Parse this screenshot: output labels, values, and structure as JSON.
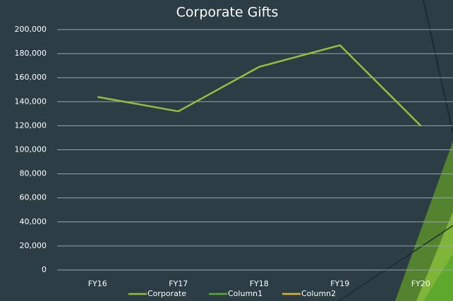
{
  "chart_data": {
    "type": "line",
    "title": "Corporate Gifts",
    "categories": [
      "FY16",
      "FY17",
      "FY18",
      "FY19",
      "FY20"
    ],
    "series": [
      {
        "name": "Corporate",
        "color": "#9bbb3c",
        "values": [
          144000,
          132000,
          169000,
          187000,
          120000
        ]
      },
      {
        "name": "Column1",
        "color": "#5fa82e",
        "values": [
          null,
          null,
          null,
          null,
          null
        ]
      },
      {
        "name": "Column2",
        "color": "#e6b422",
        "values": [
          null,
          null,
          null,
          null,
          null
        ]
      }
    ],
    "ylim": [
      0,
      200000
    ],
    "yticks": [
      0,
      {
        "value": 20000,
        "label": "20,000"
      },
      {
        "value": 40000,
        "label": "40,000"
      },
      {
        "value": 60000,
        "label": "60,000"
      },
      {
        "value": 80000,
        "label": "80,000"
      },
      {
        "value": 100000,
        "label": "100,000"
      },
      {
        "value": 120000,
        "label": "120,000"
      },
      {
        "value": 140000,
        "label": "140,000"
      },
      {
        "value": 160000,
        "label": "160,000"
      },
      {
        "value": 180000,
        "label": "180,000"
      },
      {
        "value": 200000,
        "label": "200,000"
      }
    ],
    "grid": true,
    "legend": "bottom"
  }
}
